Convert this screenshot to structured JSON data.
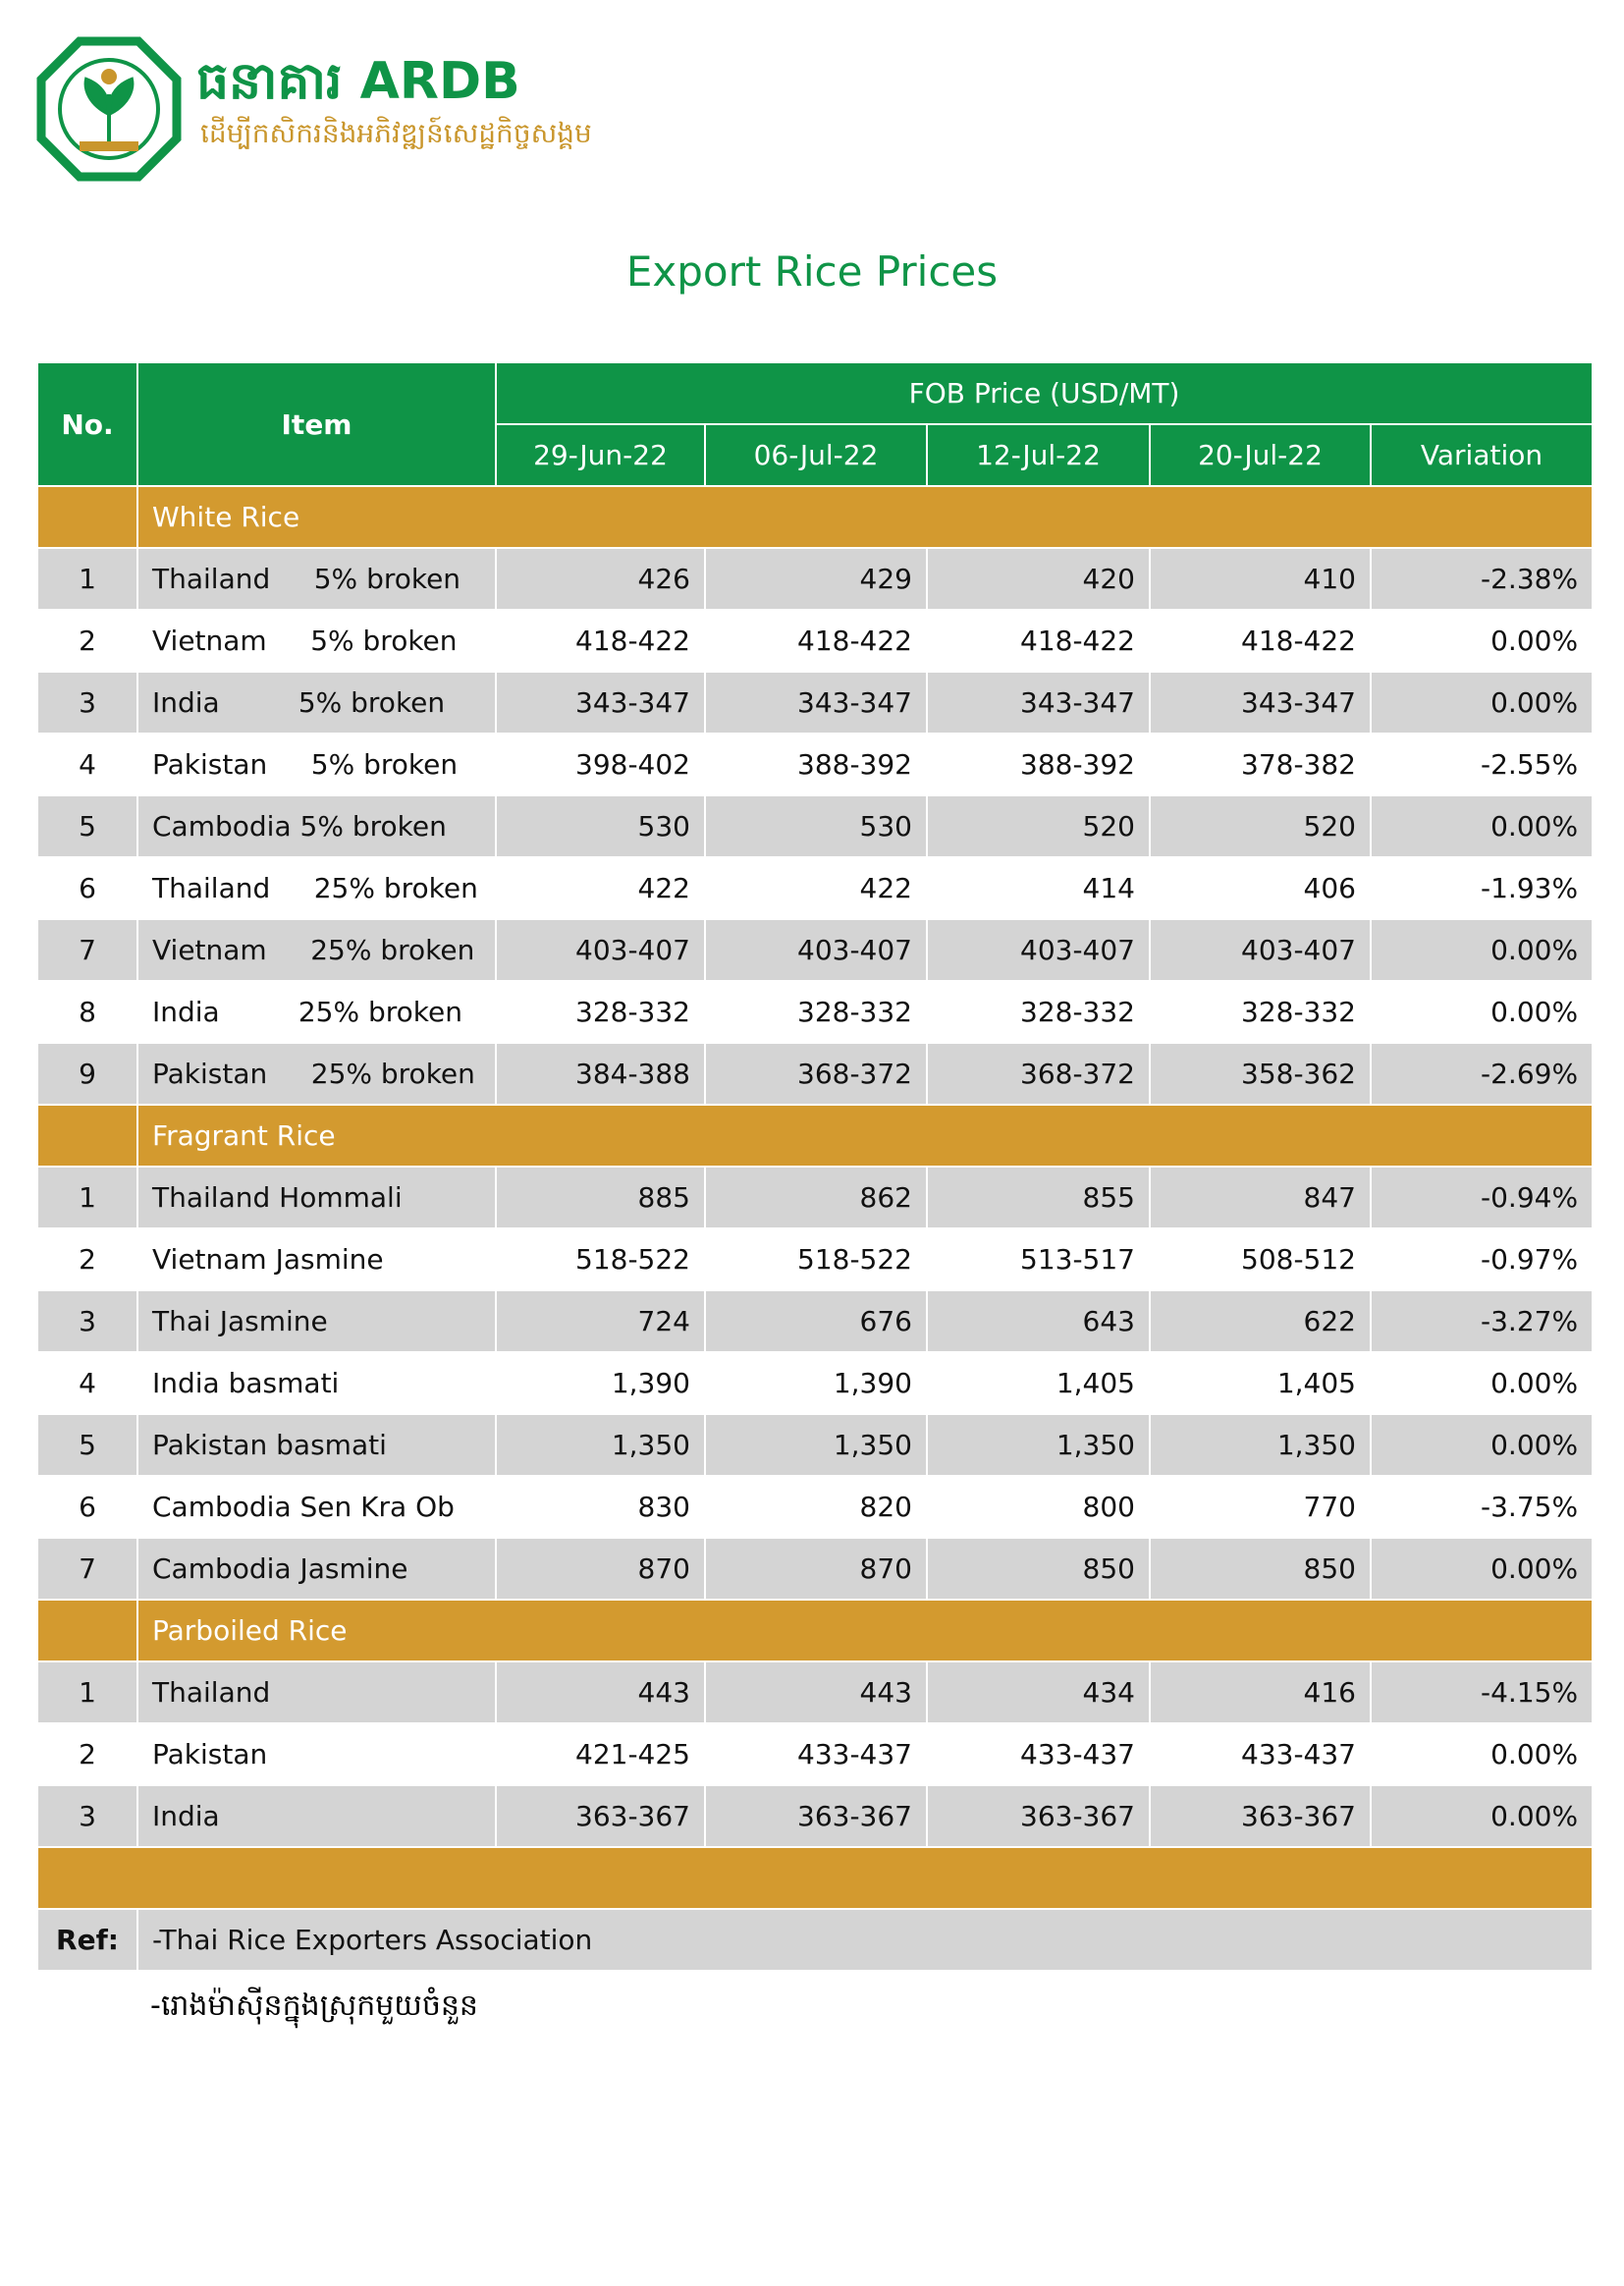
{
  "header": {
    "brand_khmer": "ធនាគារ",
    "brand": "ARDB",
    "tagline": "ដើម្បីកសិករនិងអភិវឌ្ឍន៍សេដ្ឋកិច្ចសង្គម"
  },
  "title": "Export Rice Prices",
  "table": {
    "columns": {
      "no": "No.",
      "item": "Item",
      "group": "FOB Price (USD/MT)",
      "dates": [
        "29-Jun-22",
        "06-Jul-22",
        "12-Jul-22",
        "20-Jul-22"
      ],
      "variation": "Variation"
    },
    "sections": [
      {
        "title": "White Rice",
        "rows": [
          [
            "1",
            "Thailand     5% broken",
            "426",
            "429",
            "420",
            "410",
            "-2.38%"
          ],
          [
            "2",
            "Vietnam     5% broken",
            "418-422",
            "418-422",
            "418-422",
            "418-422",
            "0.00%"
          ],
          [
            "3",
            "India         5% broken",
            "343-347",
            "343-347",
            "343-347",
            "343-347",
            "0.00%"
          ],
          [
            "4",
            "Pakistan     5% broken",
            "398-402",
            "388-392",
            "388-392",
            "378-382",
            "-2.55%"
          ],
          [
            "5",
            "Cambodia 5% broken",
            "530",
            "530",
            "520",
            "520",
            "0.00%"
          ],
          [
            "6",
            "Thailand     25% broken",
            "422",
            "422",
            "414",
            "406",
            "-1.93%"
          ],
          [
            "7",
            "Vietnam     25% broken",
            "403-407",
            "403-407",
            "403-407",
            "403-407",
            "0.00%"
          ],
          [
            "8",
            "India         25% broken",
            "328-332",
            "328-332",
            "328-332",
            "328-332",
            "0.00%"
          ],
          [
            "9",
            "Pakistan     25% broken",
            "384-388",
            "368-372",
            "368-372",
            "358-362",
            "-2.69%"
          ]
        ]
      },
      {
        "title": "Fragrant Rice",
        "rows": [
          [
            "1",
            "Thailand Hommali",
            "885",
            "862",
            "855",
            "847",
            "-0.94%"
          ],
          [
            "2",
            "Vietnam Jasmine",
            "518-522",
            "518-522",
            "513-517",
            "508-512",
            "-0.97%"
          ],
          [
            "3",
            "Thai Jasmine",
            "724",
            "676",
            "643",
            "622",
            "-3.27%"
          ],
          [
            "4",
            "India basmati",
            "1,390",
            "1,390",
            "1,405",
            "1,405",
            "0.00%"
          ],
          [
            "5",
            "Pakistan basmati",
            "1,350",
            "1,350",
            "1,350",
            "1,350",
            "0.00%"
          ],
          [
            "6",
            "Cambodia Sen Kra Ob",
            "830",
            "820",
            "800",
            "770",
            "-3.75%"
          ],
          [
            "7",
            "Cambodia Jasmine",
            "870",
            "870",
            "850",
            "850",
            "0.00%"
          ]
        ]
      },
      {
        "title": "Parboiled Rice",
        "rows": [
          [
            "1",
            "Thailand",
            "443",
            "443",
            "434",
            "416",
            "-4.15%"
          ],
          [
            "2",
            "Pakistan",
            "421-425",
            "433-437",
            "433-437",
            "433-437",
            "0.00%"
          ],
          [
            "3",
            "India",
            "363-367",
            "363-367",
            "363-367",
            "363-367",
            "0.00%"
          ]
        ]
      }
    ],
    "ref": {
      "label": "Ref:",
      "sources": [
        "-Thai Rice Exporters Association",
        "-រោងម៉ាស៊ីនក្នុងស្រុកមួយចំនួន"
      ]
    }
  }
}
